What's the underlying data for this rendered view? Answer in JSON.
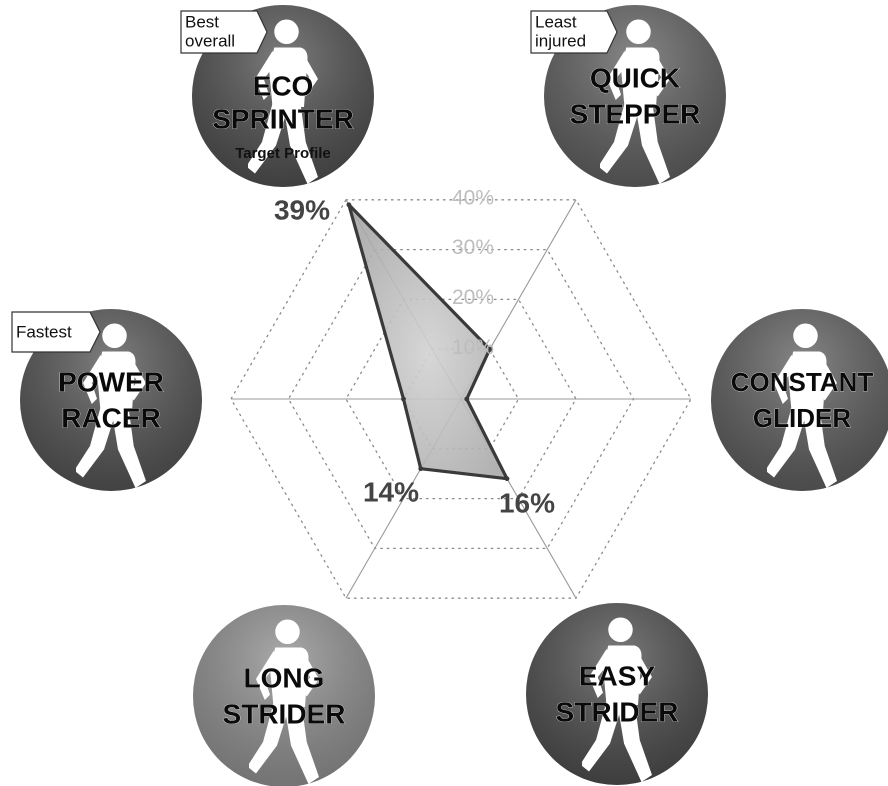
{
  "chart_data": {
    "type": "radar",
    "ring_labels": [
      "10%",
      "20%",
      "30%",
      "40%"
    ],
    "rmax": 40,
    "categories": [
      "ECO SPRINTER",
      "QUICK STEPPER",
      "CONSTANT GLIDER",
      "EASY STRIDER",
      "LONG STRIDER",
      "POWER RACER"
    ],
    "values": [
      39,
      10,
      1,
      16,
      14,
      10
    ],
    "value_labels": [
      {
        "category": "ECO SPRINTER",
        "text": "39%"
      },
      {
        "category": "EASY STRIDER",
        "text": "16%"
      },
      {
        "category": "LONG STRIDER",
        "text": "14%"
      }
    ]
  },
  "profiles": [
    {
      "id": "eco-sprinter",
      "line1": "ECO",
      "line2": "SPRINTER",
      "subtitle": "Target Profile",
      "tag_line1": "Best",
      "tag_line2": "overall",
      "shade": "#4a4a4a"
    },
    {
      "id": "quick-stepper",
      "line1": "QUICK",
      "line2": "STEPPER",
      "subtitle": "",
      "tag_line1": "Least",
      "tag_line2": "injured",
      "shade": "#5a5a5a"
    },
    {
      "id": "constant-glider",
      "line1": "CONSTANT",
      "line2": "GLIDER",
      "subtitle": "",
      "tag_line1": "",
      "tag_line2": "",
      "shade": "#585858"
    },
    {
      "id": "easy-strider",
      "line1": "EASY",
      "line2": "STRIDER",
      "subtitle": "",
      "tag_line1": "",
      "tag_line2": "",
      "shade": "#484848"
    },
    {
      "id": "long-strider",
      "line1": "LONG",
      "line2": "STRIDER",
      "subtitle": "",
      "tag_line1": "",
      "tag_line2": "",
      "shade": "#8a8a8a"
    },
    {
      "id": "power-racer",
      "line1": "POWER",
      "line2": "RACER",
      "subtitle": "",
      "tag_line1": "Fastest",
      "tag_line2": "",
      "shade": "#4e4e4e"
    }
  ]
}
